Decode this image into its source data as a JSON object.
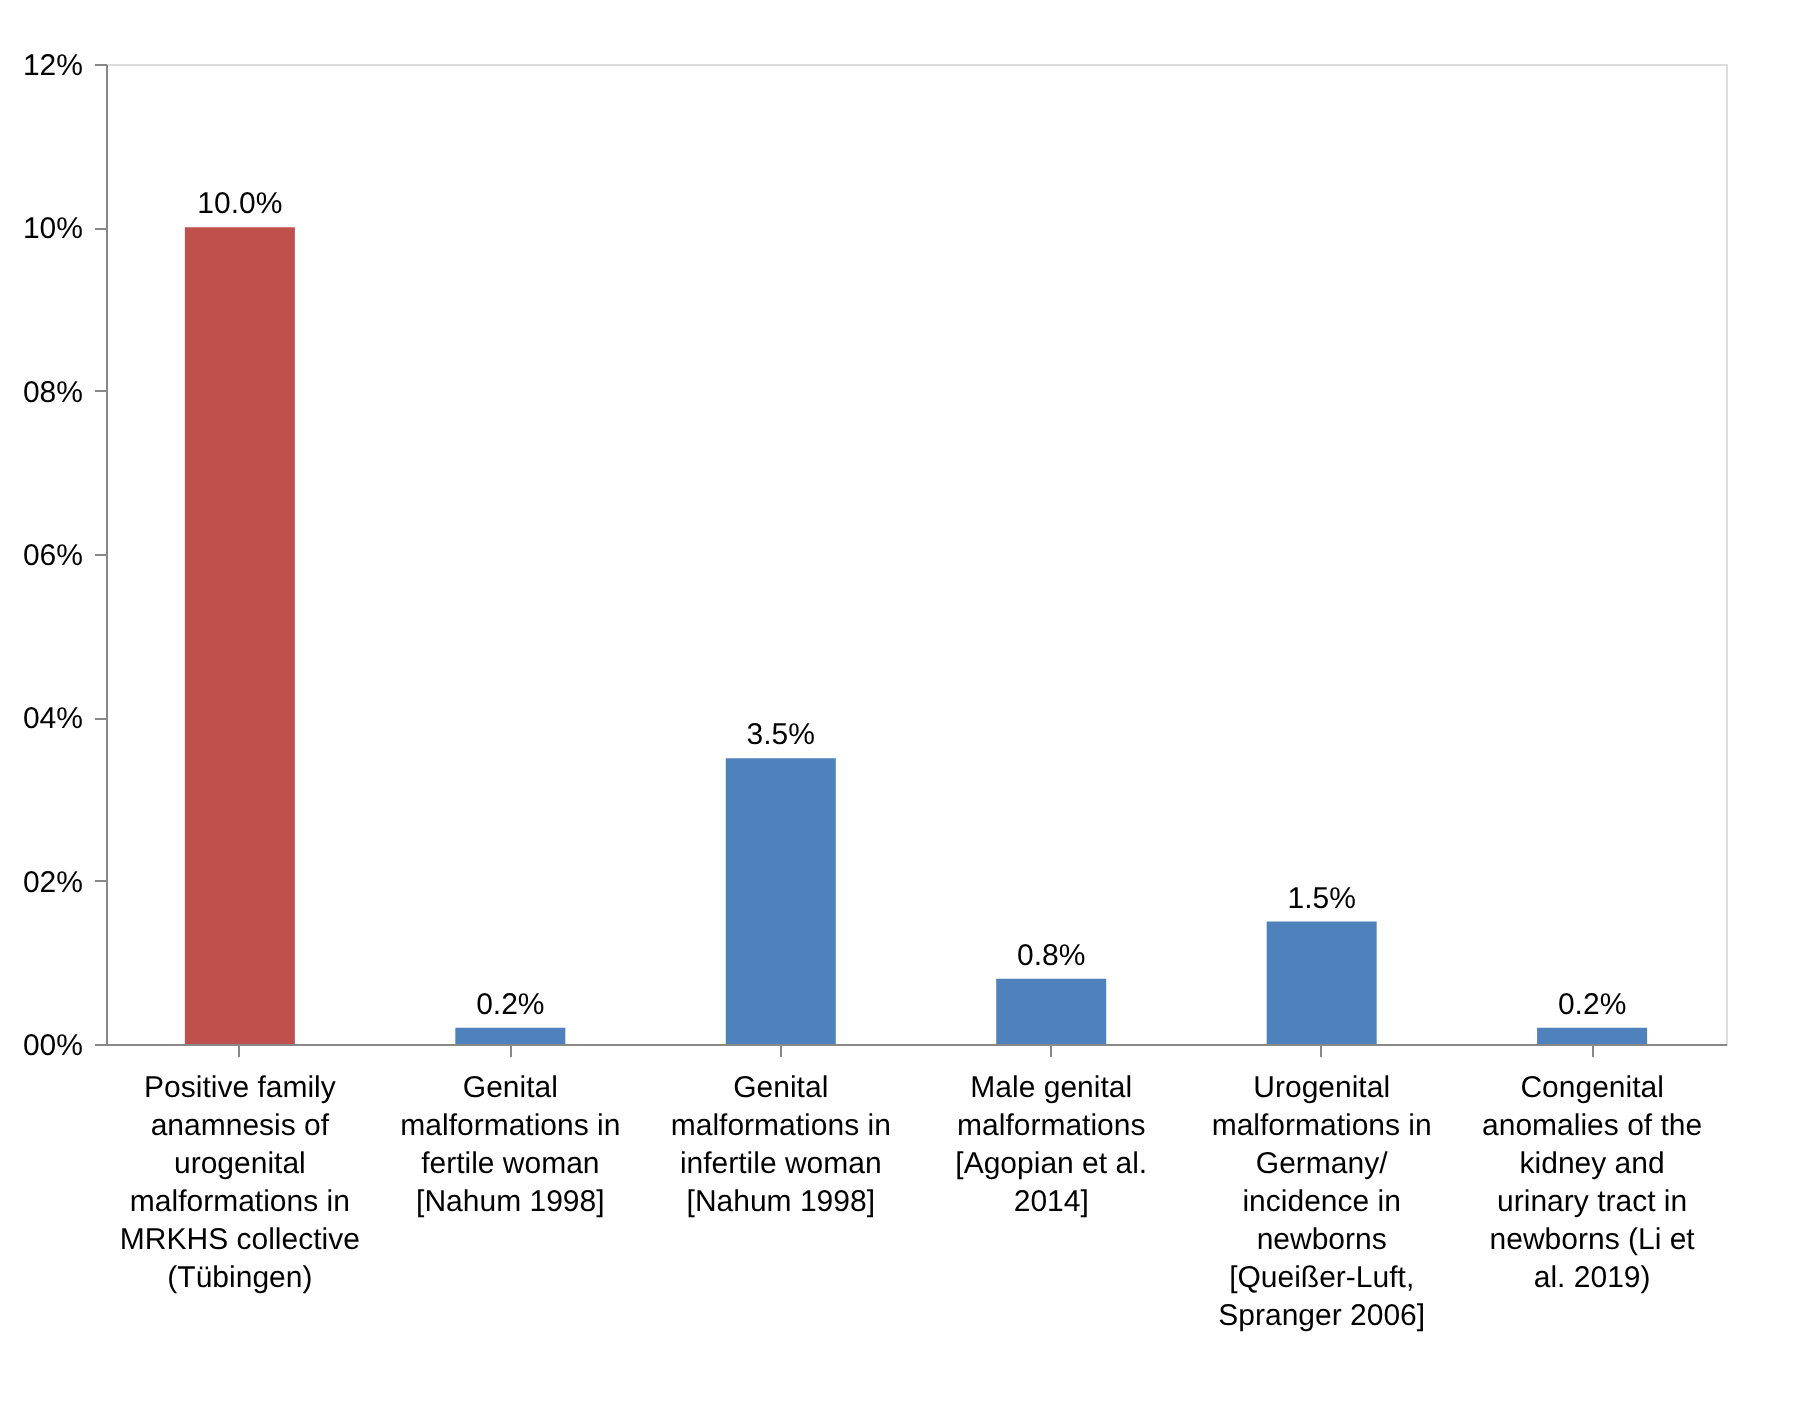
{
  "chart_data": {
    "type": "bar",
    "categories": [
      "Positive family\nanamnesis of\nurogenital\nmalformations in\nMRKHS collective\n(Tübingen)",
      "Genital\nmalformations in\nfertile woman\n[Nahum 1998]",
      "Genital\nmalformations in\ninfertile woman\n[Nahum 1998]",
      "Male genital\nmalformations\n[Agopian et al.\n2014]",
      "Urogenital\nmalformations in\nGermany/\nincidence in\nnewborns\n[Queißer-Luft,\nSpranger 2006]",
      "Congenital\nanomalies of the\nkidney and\nurinary tract in\nnewborns (Li et\nal. 2019)"
    ],
    "values": [
      10.0,
      0.2,
      3.5,
      0.8,
      1.5,
      0.2
    ],
    "colors": [
      "#c0504d",
      "#4f81bd",
      "#4f81bd",
      "#4f81bd",
      "#4f81bd",
      "#4f81bd"
    ],
    "value_labels": [
      "10.0%",
      "0.2%",
      "3.5%",
      "0.8%",
      "1.5%",
      "0.2%"
    ],
    "ylim": [
      0,
      12
    ],
    "yticks": [
      {
        "value": 0,
        "label": "00%"
      },
      {
        "value": 2,
        "label": "02%"
      },
      {
        "value": 4,
        "label": "04%"
      },
      {
        "value": 6,
        "label": "06%"
      },
      {
        "value": 8,
        "label": "08%"
      },
      {
        "value": 10,
        "label": "10%"
      },
      {
        "value": 12,
        "label": "12%"
      }
    ],
    "grid": false
  }
}
